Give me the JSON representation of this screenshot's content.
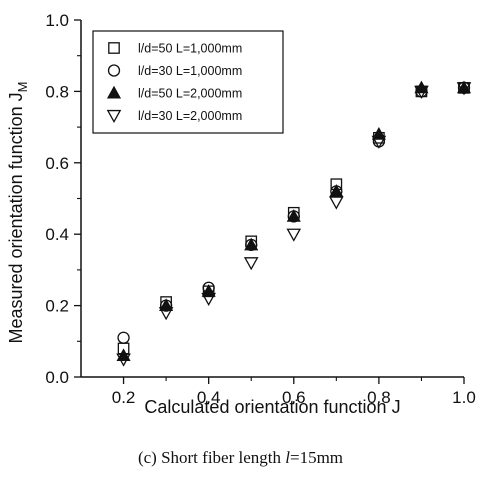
{
  "caption": {
    "prefix": "(c) Short fiber length ",
    "var": "l",
    "suffix": "=15mm"
  },
  "chart_data": {
    "type": "scatter",
    "xlabel": "Calculated orientation function J",
    "ylabel": "Measured orientation function J",
    "ylabel_subscript": "M",
    "xlim": [
      0.1,
      1.0
    ],
    "ylim": [
      0.0,
      1.0
    ],
    "xticks": [
      "0.2",
      "0.4",
      "0.6",
      "0.8",
      "1.0"
    ],
    "yticks": [
      "0.0",
      "0.2",
      "0.4",
      "0.6",
      "0.8",
      "1.0"
    ],
    "xtick_values": [
      0.2,
      0.4,
      0.6,
      0.8,
      1.0
    ],
    "ytick_values": [
      0.0,
      0.2,
      0.4,
      0.6,
      0.8,
      1.0
    ],
    "minor_xtick_values": [
      0.3,
      0.5,
      0.7,
      0.9
    ],
    "minor_ytick_values": [
      0.1,
      0.3,
      0.5,
      0.7,
      0.9
    ],
    "grid": false,
    "legend_position": "top-left",
    "series": [
      {
        "name": "l/d=50 L=1,000mm",
        "marker": "open-square",
        "x": [
          0.2,
          0.3,
          0.4,
          0.5,
          0.6,
          0.7,
          0.8,
          0.9,
          1.0
        ],
        "y": [
          0.08,
          0.21,
          0.24,
          0.38,
          0.46,
          0.54,
          0.67,
          0.8,
          0.81
        ]
      },
      {
        "name": "l/d=30 L=1,000mm",
        "marker": "open-circle",
        "x": [
          0.2,
          0.3,
          0.4,
          0.5,
          0.6,
          0.7,
          0.8,
          0.9,
          1.0
        ],
        "y": [
          0.11,
          0.2,
          0.25,
          0.37,
          0.45,
          0.52,
          0.66,
          0.8,
          0.81
        ]
      },
      {
        "name": "l/d=50 L=2,000mm",
        "marker": "filled-triangle-up",
        "x": [
          0.2,
          0.3,
          0.4,
          0.5,
          0.6,
          0.7,
          0.8,
          0.9,
          1.0
        ],
        "y": [
          0.06,
          0.2,
          0.24,
          0.37,
          0.45,
          0.52,
          0.68,
          0.81,
          0.81
        ]
      },
      {
        "name": "l/d=30 L=2,000mm",
        "marker": "open-triangle-down",
        "x": [
          0.2,
          0.3,
          0.4,
          0.5,
          0.6,
          0.7,
          0.8,
          0.9,
          1.0
        ],
        "y": [
          0.05,
          0.18,
          0.22,
          0.32,
          0.4,
          0.49,
          0.66,
          0.8,
          0.81
        ]
      }
    ]
  }
}
